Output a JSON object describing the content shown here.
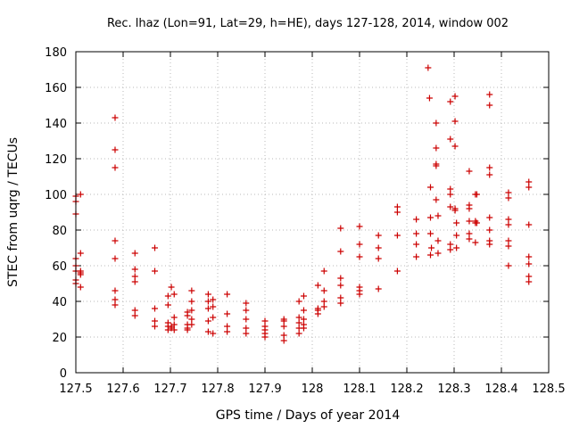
{
  "chart_data": {
    "type": "scatter",
    "title": "Rec. lhaz (Lon=91, Lat=29, h=HE), days 127-128, 2014, window 002",
    "xlabel": "GPS time / Days of year 2014",
    "ylabel": "STEC from uqrg / TECUs",
    "xlim": [
      127.5,
      128.5
    ],
    "ylim": [
      0,
      180
    ],
    "x_ticks": [
      "127.5",
      "127.6",
      "127.7",
      "127.8",
      "127.9",
      "128",
      "128.1",
      "128.2",
      "128.3",
      "128.4",
      "128.5"
    ],
    "y_ticks": [
      "0",
      "20",
      "40",
      "60",
      "80",
      "100",
      "120",
      "140",
      "160",
      "180"
    ],
    "grid": true,
    "marker": "+",
    "color": "#cc0000",
    "series": [
      {
        "x": [
          127.5,
          127.5,
          127.5,
          127.5,
          127.5,
          127.5,
          127.5,
          127.5,
          127.51,
          127.51,
          127.51,
          127.51,
          127.51,
          127.51,
          127.583,
          127.583,
          127.583,
          127.583,
          127.583,
          127.583,
          127.583,
          127.583,
          127.625,
          127.625,
          127.625,
          127.625,
          127.625,
          127.625,
          127.667,
          127.667,
          127.667,
          127.667,
          127.667,
          127.695,
          127.695,
          127.695,
          127.695,
          127.695,
          127.702,
          127.702,
          127.702,
          127.708,
          127.708,
          127.708,
          127.708,
          127.736,
          127.736,
          127.736,
          127.736,
          127.736,
          127.745,
          127.745,
          127.745,
          127.745,
          127.745,
          127.78,
          127.78,
          127.78,
          127.78,
          127.78,
          127.79,
          127.79,
          127.79,
          127.79,
          127.82,
          127.82,
          127.82,
          127.82,
          127.86,
          127.86,
          127.86,
          127.86,
          127.86,
          127.9,
          127.9,
          127.9,
          127.9,
          127.9,
          127.94,
          127.94,
          127.94,
          127.94,
          127.94,
          127.972,
          127.972,
          127.972,
          127.972,
          127.972,
          127.982,
          127.982,
          127.982,
          127.982,
          127.982,
          128.012,
          128.012,
          128.012,
          128.012,
          128.025,
          128.025,
          128.025,
          128.025,
          128.06,
          128.06,
          128.06,
          128.06,
          128.06,
          128.06,
          128.1,
          128.1,
          128.1,
          128.1,
          128.1,
          128.1,
          128.14,
          128.14,
          128.14,
          128.14,
          128.18,
          128.18,
          128.18,
          128.18,
          128.22,
          128.22,
          128.22,
          128.22,
          128.245,
          128.248,
          128.25,
          128.25,
          128.25,
          128.25,
          128.252,
          128.262,
          128.262,
          128.262,
          128.262,
          128.262,
          128.266,
          128.266,
          128.266,
          128.292,
          128.292,
          128.292,
          128.292,
          128.292,
          128.292,
          128.292,
          128.302,
          128.302,
          128.302,
          128.302,
          128.302,
          128.305,
          128.305,
          128.305,
          128.332,
          128.332,
          128.332,
          128.332,
          128.332,
          128.332,
          128.345,
          128.345,
          128.345,
          128.345,
          128.348,
          128.348,
          128.375,
          128.375,
          128.375,
          128.375,
          128.375,
          128.375,
          128.375,
          128.375,
          128.415,
          128.415,
          128.415,
          128.415,
          128.415,
          128.415,
          128.415,
          128.458,
          128.458,
          128.458,
          128.458,
          128.458,
          128.458,
          128.458
        ],
        "y": [
          89,
          64,
          60,
          52,
          50,
          57,
          99,
          96,
          67,
          57,
          56,
          55,
          48,
          100,
          143,
          125,
          115,
          74,
          64,
          46,
          41,
          38,
          67,
          58,
          54,
          51,
          35,
          32,
          70,
          57,
          36,
          29,
          26,
          43,
          38,
          28,
          26,
          24,
          48,
          25,
          26,
          44,
          31,
          27,
          24,
          34,
          32,
          27,
          25,
          24,
          46,
          40,
          35,
          30,
          27,
          44,
          40,
          36,
          29,
          23,
          41,
          37,
          31,
          22,
          44,
          33,
          26,
          23,
          39,
          35,
          30,
          25,
          22,
          29,
          26,
          24,
          22,
          20,
          30,
          29,
          26,
          21,
          18,
          40,
          31,
          28,
          25,
          22,
          43,
          35,
          30,
          27,
          25,
          49,
          36,
          35,
          33,
          57,
          46,
          40,
          37,
          81,
          68,
          53,
          49,
          42,
          39,
          82,
          72,
          65,
          48,
          46,
          44,
          77,
          70,
          64,
          47,
          93,
          90,
          77,
          57,
          86,
          78,
          72,
          65,
          171,
          154,
          104,
          87,
          78,
          66,
          70,
          140,
          126,
          117,
          116,
          97,
          88,
          74,
          67,
          152,
          131,
          103,
          100,
          93,
          72,
          69,
          155,
          141,
          127,
          92,
          91,
          84,
          77,
          70,
          113,
          94,
          92,
          85,
          78,
          75,
          100,
          85,
          84,
          73,
          100,
          84,
          156,
          150,
          115,
          111,
          87,
          80,
          74,
          72,
          101,
          98,
          86,
          83,
          74,
          71,
          60,
          107,
          104,
          83,
          65,
          61,
          54,
          51
        ]
      }
    ]
  }
}
